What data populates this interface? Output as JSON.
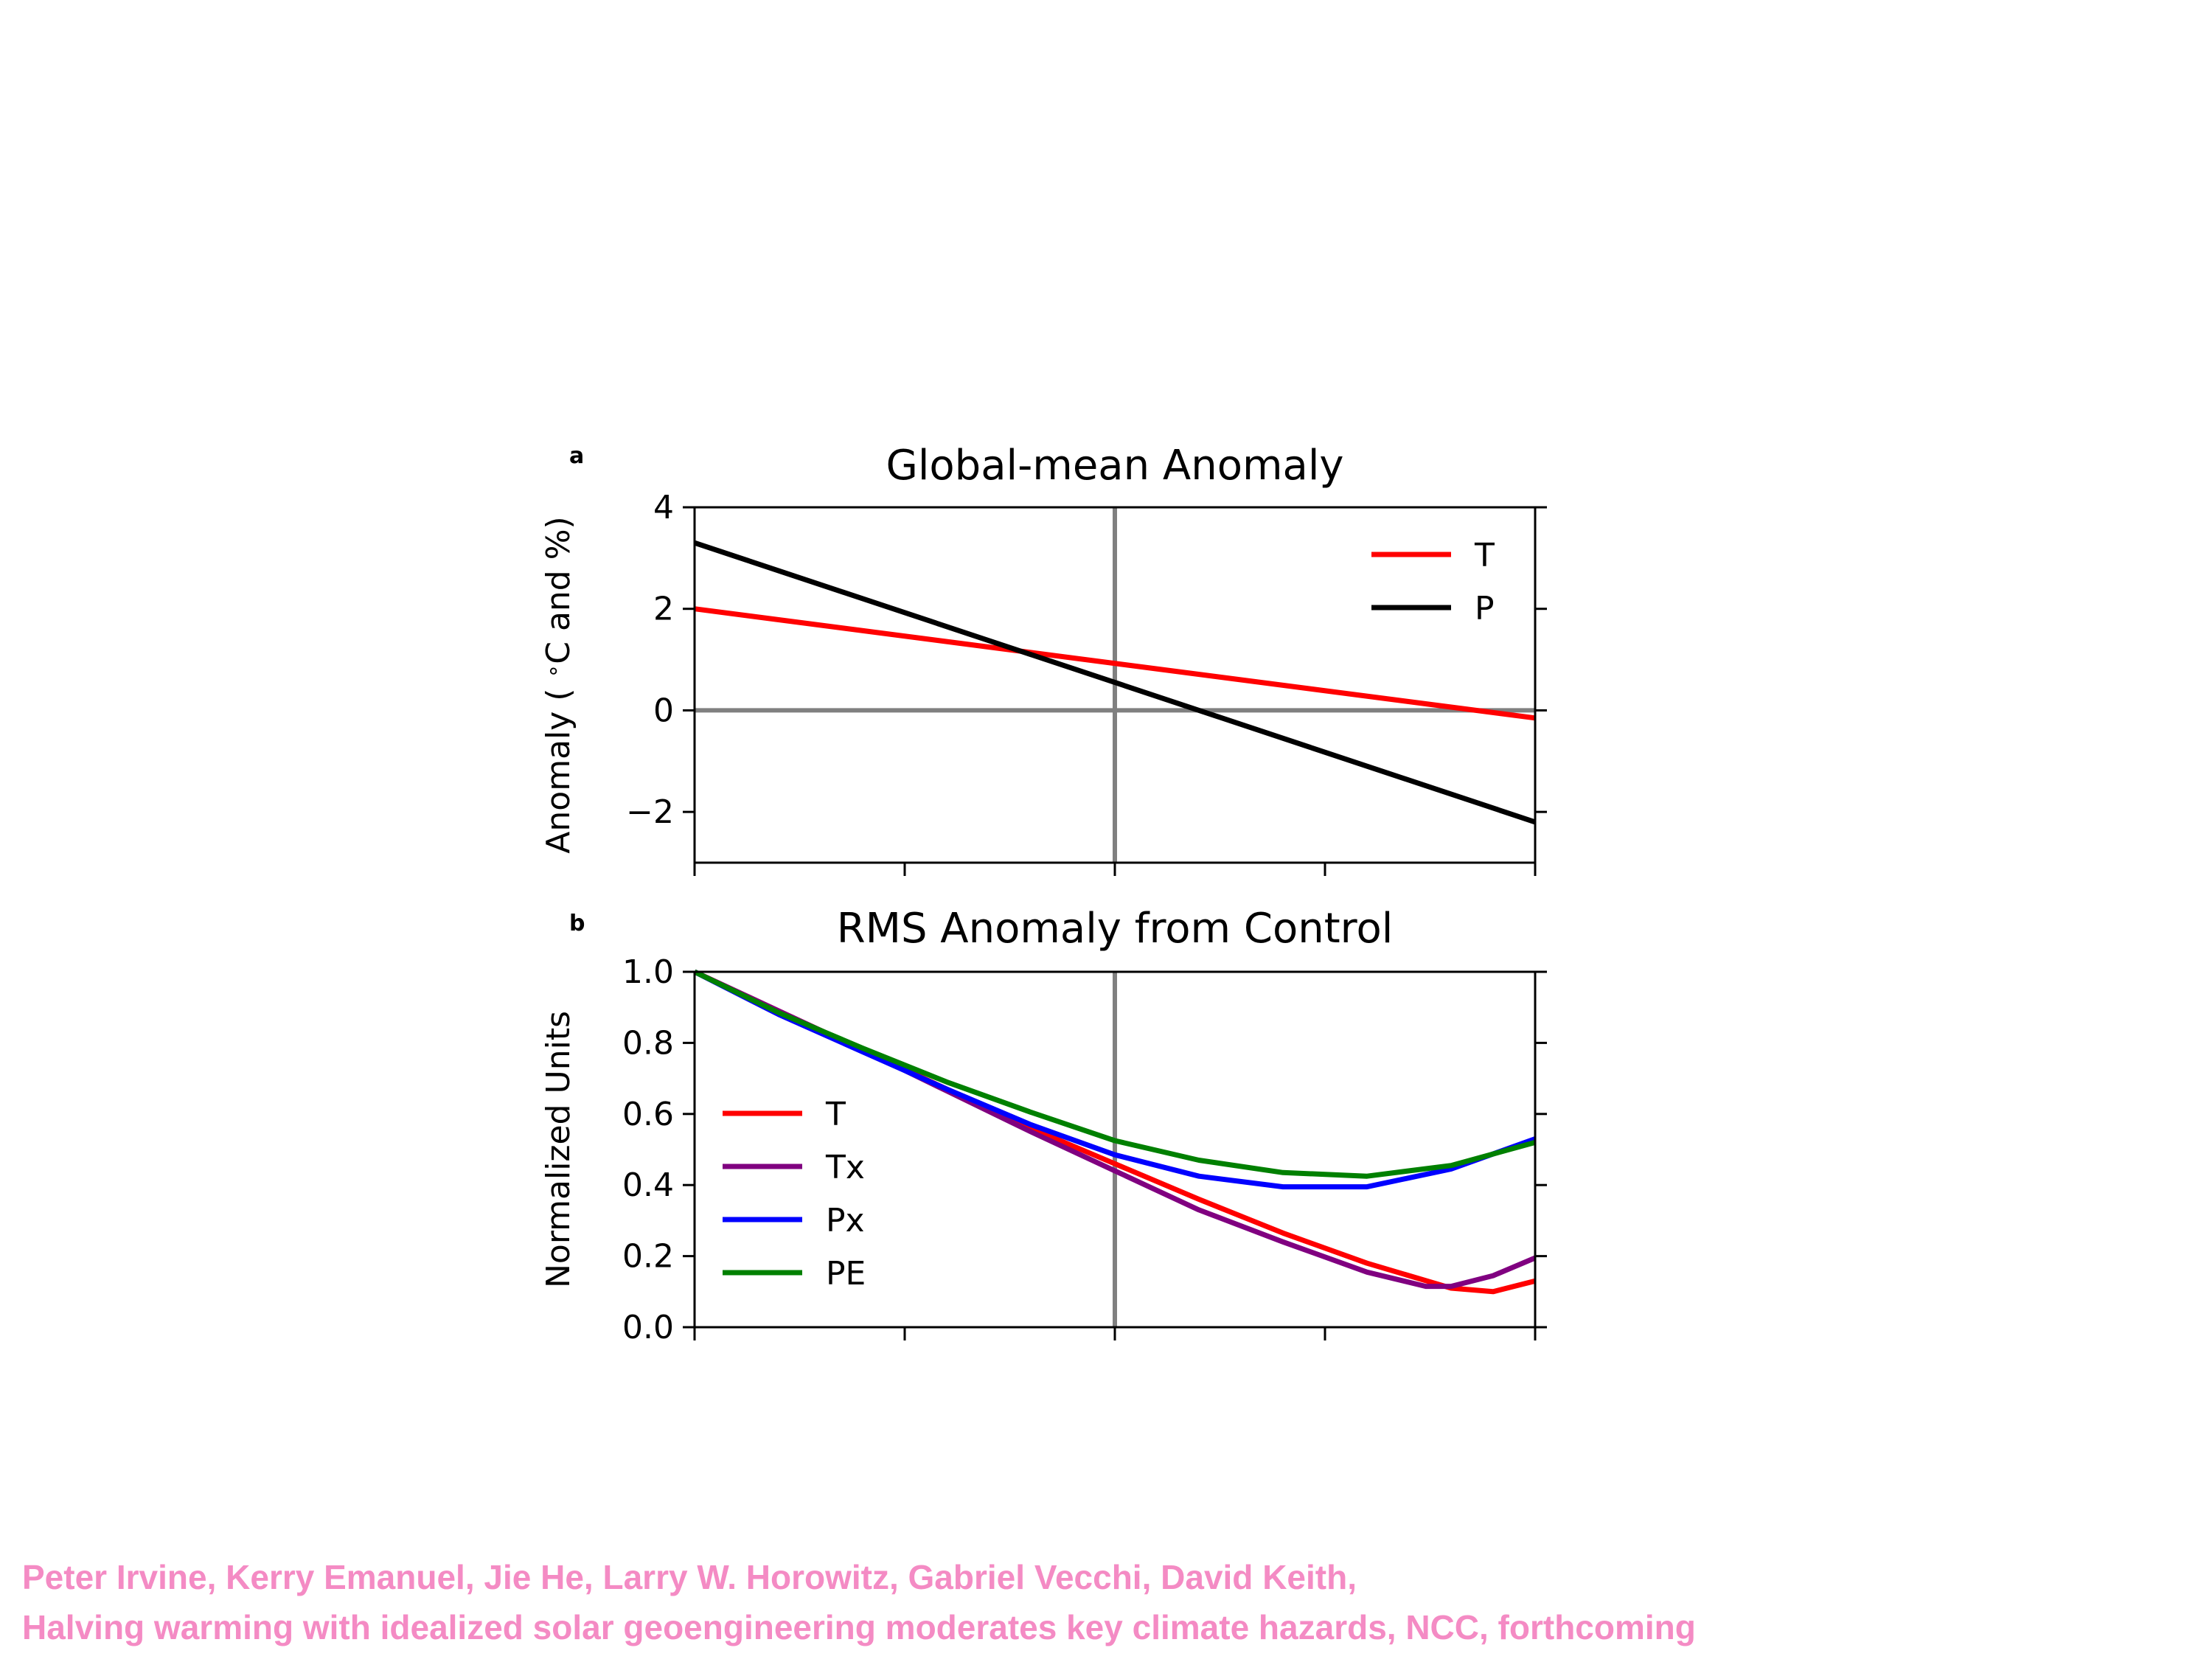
{
  "chart_data": [
    {
      "panel_label": "a",
      "type": "line",
      "title": "Global-mean Anomaly",
      "xlabel": "",
      "ylabel": "Anomaly ( $^\\circ$C and %)",
      "xlim": [
        0,
        1
      ],
      "ylim": [
        -3,
        4
      ],
      "yticks": [
        -2,
        0,
        2,
        4
      ],
      "ytick_labels": [
        "−2",
        "0",
        "2",
        "4"
      ],
      "xtick_positions": [
        0,
        0.25,
        0.5,
        0.75,
        1
      ],
      "reference_lines": {
        "horizontal": 0,
        "vertical": 0.5
      },
      "legend_position": "top-right",
      "series": [
        {
          "name": "T",
          "color": "#ff0000",
          "x": [
            0,
            1
          ],
          "y": [
            2.0,
            -0.15
          ]
        },
        {
          "name": "P",
          "color": "#000000",
          "x": [
            0,
            1
          ],
          "y": [
            3.3,
            -2.2
          ]
        }
      ]
    },
    {
      "panel_label": "b",
      "type": "line",
      "title": "RMS Anomaly from Control",
      "xlabel": "",
      "ylabel": "Normalized Units",
      "xlim": [
        0,
        1
      ],
      "ylim": [
        0,
        1
      ],
      "yticks": [
        0,
        0.2,
        0.4,
        0.6,
        0.8,
        1.0
      ],
      "ytick_labels": [
        "0.0",
        "0.2",
        "0.4",
        "0.6",
        "0.8",
        "1.0"
      ],
      "xtick_positions": [
        0,
        0.25,
        0.5,
        0.75,
        1
      ],
      "reference_lines": {
        "vertical": 0.5
      },
      "legend_position": "center-left",
      "series": [
        {
          "name": "T",
          "color": "#ff0000",
          "x": [
            0,
            0.1,
            0.2,
            0.3,
            0.4,
            0.5,
            0.6,
            0.7,
            0.8,
            0.9,
            0.95,
            1.0
          ],
          "y": [
            1.0,
            0.89,
            0.78,
            0.67,
            0.56,
            0.46,
            0.36,
            0.265,
            0.18,
            0.11,
            0.1,
            0.13
          ]
        },
        {
          "name": "Tx",
          "color": "#800080",
          "x": [
            0,
            0.1,
            0.2,
            0.3,
            0.4,
            0.5,
            0.6,
            0.7,
            0.8,
            0.87,
            0.9,
            0.95,
            1.0
          ],
          "y": [
            1.0,
            0.89,
            0.78,
            0.665,
            0.55,
            0.44,
            0.33,
            0.24,
            0.155,
            0.115,
            0.115,
            0.145,
            0.195
          ]
        },
        {
          "name": "Px",
          "color": "#0000ff",
          "x": [
            0,
            0.1,
            0.2,
            0.3,
            0.4,
            0.5,
            0.6,
            0.7,
            0.8,
            0.9,
            1.0
          ],
          "y": [
            1.0,
            0.88,
            0.775,
            0.67,
            0.57,
            0.485,
            0.425,
            0.395,
            0.395,
            0.445,
            0.53
          ]
        },
        {
          "name": "PE",
          "color": "#008000",
          "x": [
            0,
            0.1,
            0.2,
            0.3,
            0.4,
            0.5,
            0.6,
            0.7,
            0.8,
            0.9,
            1.0
          ],
          "y": [
            1.0,
            0.885,
            0.785,
            0.69,
            0.605,
            0.525,
            0.47,
            0.435,
            0.425,
            0.455,
            0.52
          ]
        }
      ]
    }
  ],
  "credits": {
    "line1": "Peter Irvine, Kerry Emanuel, Jie He, Larry W. Horowitz, Gabriel Vecchi, David Keith,",
    "line2": "Halving warming with idealized solar geoengineering moderates key climate hazards, NCC, forthcoming"
  }
}
